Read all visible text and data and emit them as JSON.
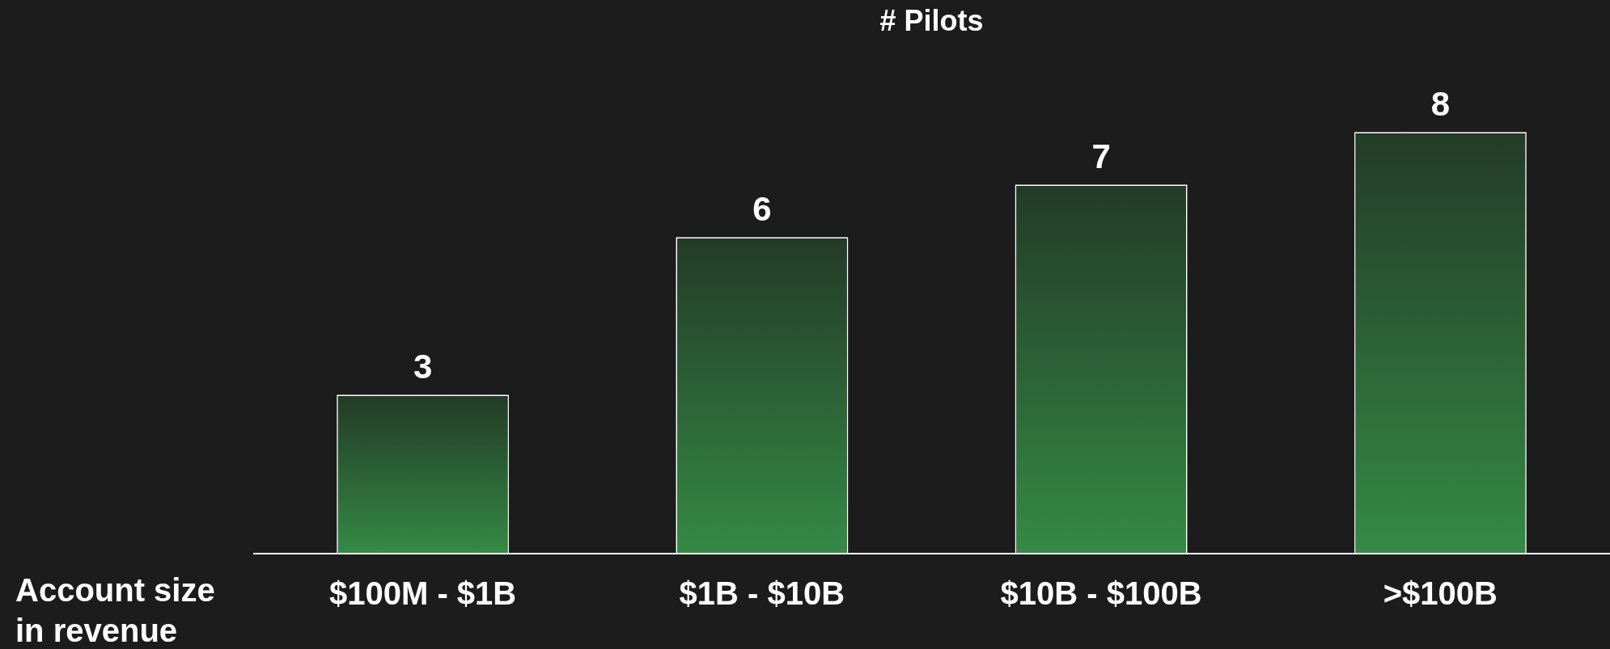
{
  "chart_data": {
    "type": "bar",
    "title": "# Pilots",
    "xlabel": "Account size\nin revenue",
    "categories": [
      "$100M - $1B",
      "$1B - $10B",
      "$10B - $100B",
      ">$100B"
    ],
    "series": [
      {
        "color": "#358a45",
        "values": [
          3,
          6,
          7,
          8
        ]
      }
    ],
    "data_labels": true
  }
}
